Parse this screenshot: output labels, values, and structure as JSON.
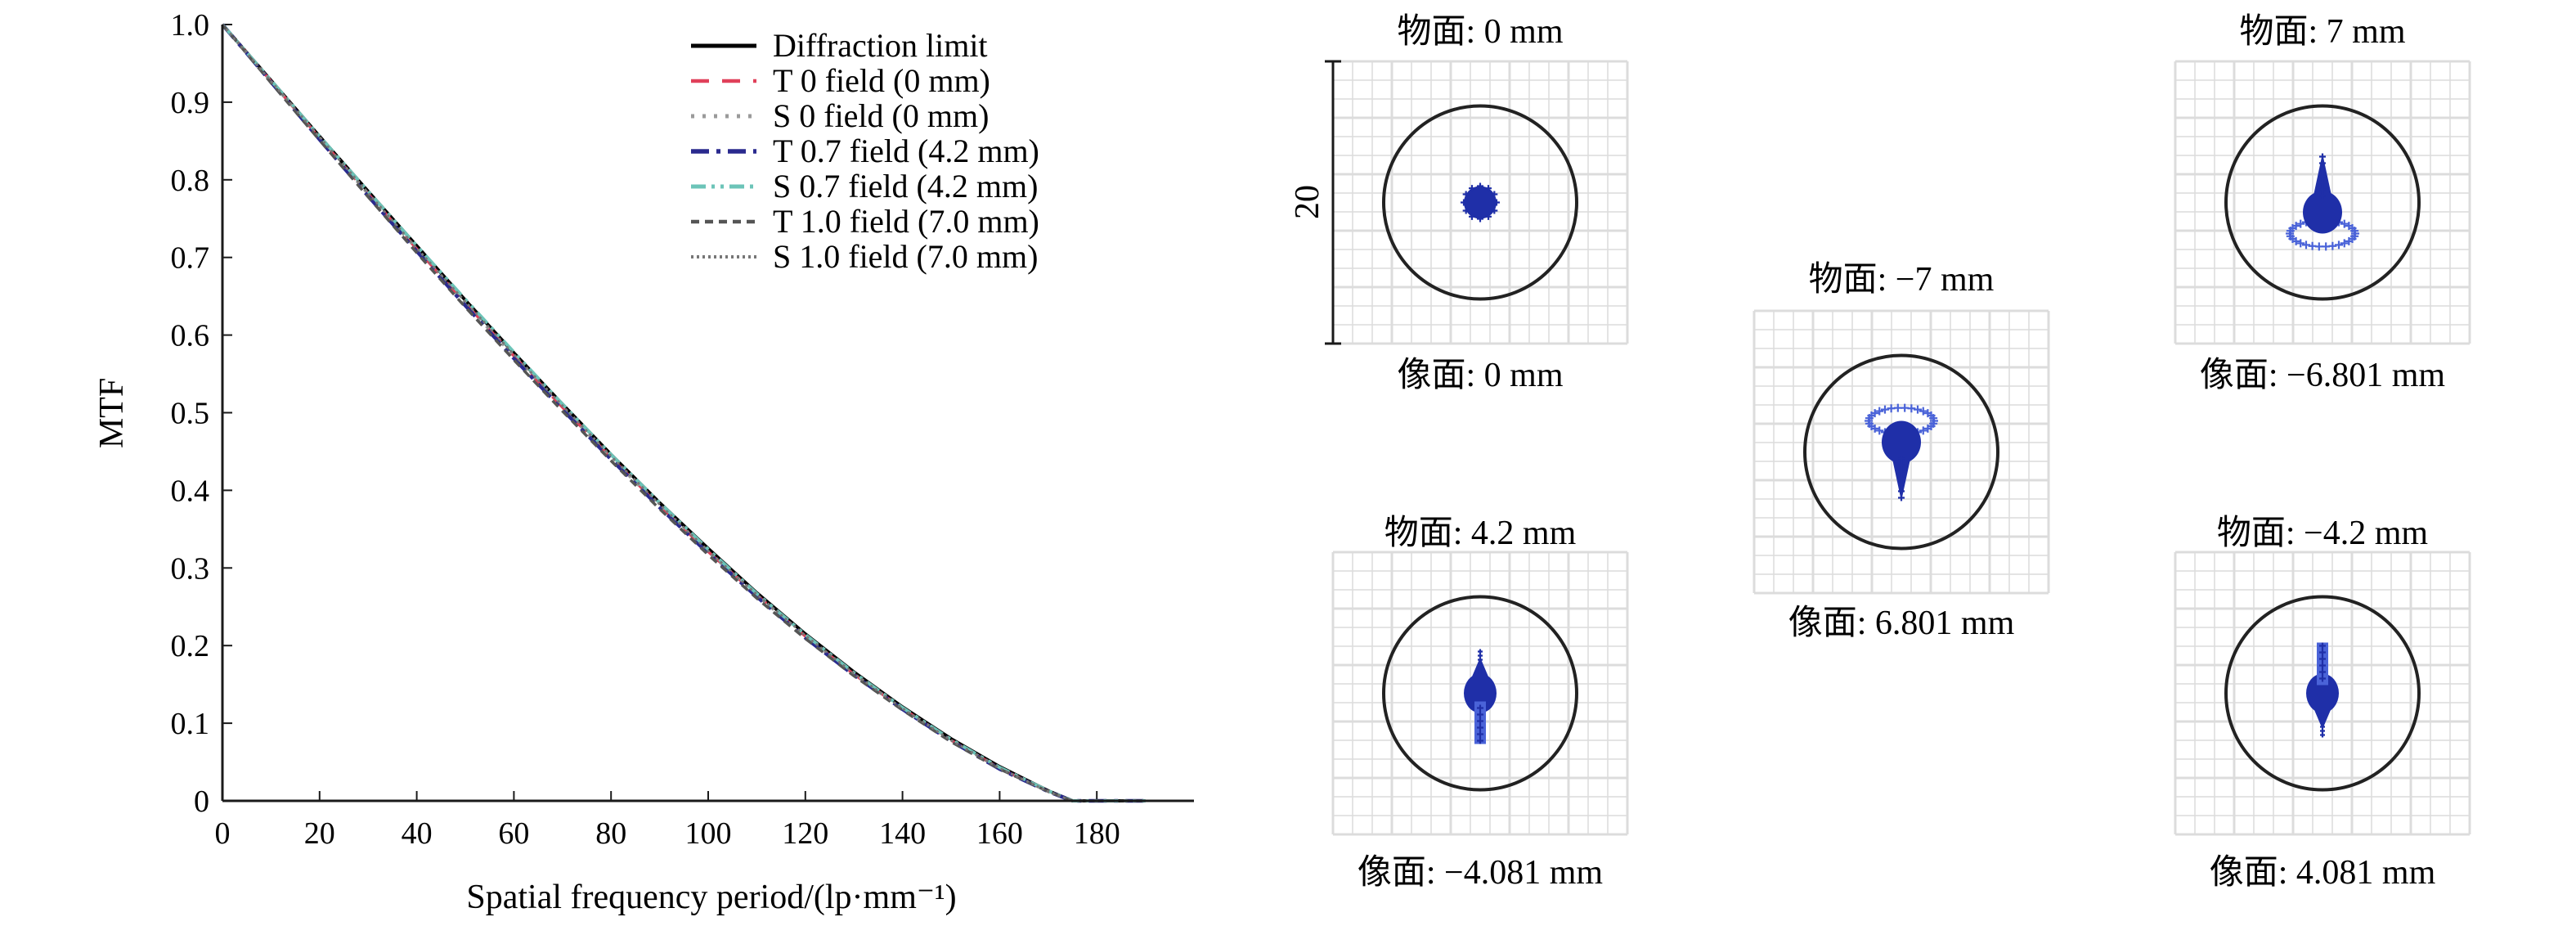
{
  "colors": {
    "axis": "#1a1a1a",
    "grid": "#dcdcdc",
    "spot": "#1f2fa8",
    "spot_light": "#4a63d8"
  },
  "chart_data": [
    {
      "type": "line",
      "xlabel": "Spatial frequency period/(lp·mm⁻¹)",
      "ylabel": "MTF",
      "xlim": [
        0,
        200
      ],
      "ylim": [
        0,
        1
      ],
      "xticks": [
        "0",
        "20",
        "40",
        "60",
        "80",
        "100",
        "120",
        "140",
        "160",
        "180"
      ],
      "yticks": [
        "0",
        "0.1",
        "0.2",
        "0.3",
        "0.4",
        "0.5",
        "0.6",
        "0.7",
        "0.8",
        "0.9",
        "1.0"
      ],
      "grid": false,
      "legend_position": "top-right",
      "x": [
        0,
        10,
        20,
        30,
        40,
        50,
        60,
        70,
        80,
        90,
        100,
        110,
        120,
        130,
        140,
        150,
        160,
        170,
        175,
        180,
        190
      ],
      "series": [
        {
          "name": "Diffraction limit",
          "color": "#000000",
          "dash": "solid",
          "values": [
            1.0,
            0.928,
            0.856,
            0.785,
            0.715,
            0.645,
            0.577,
            0.511,
            0.446,
            0.384,
            0.325,
            0.268,
            0.215,
            0.166,
            0.121,
            0.08,
            0.044,
            0.013,
            0.0,
            0.0,
            0.0
          ]
        },
        {
          "name": "T 0 field (0 mm)",
          "color": "#e0405a",
          "dash": "dashed",
          "values": [
            1.0,
            0.927,
            0.854,
            0.782,
            0.711,
            0.641,
            0.573,
            0.507,
            0.442,
            0.38,
            0.321,
            0.265,
            0.212,
            0.163,
            0.119,
            0.078,
            0.042,
            0.012,
            0.0,
            0.0,
            0.0
          ]
        },
        {
          "name": "S 0 field (0 mm)",
          "color": "#9a9a9a",
          "dash": "dotted",
          "values": [
            1.0,
            0.927,
            0.854,
            0.782,
            0.711,
            0.641,
            0.573,
            0.507,
            0.442,
            0.38,
            0.321,
            0.265,
            0.212,
            0.163,
            0.119,
            0.078,
            0.042,
            0.012,
            0.0,
            0.0,
            0.0
          ]
        },
        {
          "name": "T 0.7 field (4.2 mm)",
          "color": "#2a2a8e",
          "dash": "dashdot",
          "values": [
            1.0,
            0.926,
            0.852,
            0.779,
            0.708,
            0.638,
            0.57,
            0.504,
            0.44,
            0.378,
            0.319,
            0.263,
            0.21,
            0.162,
            0.118,
            0.077,
            0.041,
            0.012,
            0.0,
            0.0,
            0.0
          ]
        },
        {
          "name": "S 0.7 field (4.2 mm)",
          "color": "#6cc4b8",
          "dash": "dashdotdot",
          "values": [
            1.0,
            0.928,
            0.856,
            0.785,
            0.715,
            0.646,
            0.578,
            0.511,
            0.446,
            0.384,
            0.324,
            0.267,
            0.214,
            0.165,
            0.12,
            0.079,
            0.043,
            0.013,
            0.0,
            0.0,
            0.0
          ]
        },
        {
          "name": "T 1.0 field (7.0 mm)",
          "color": "#555555",
          "dash": "shortdash",
          "values": [
            1.0,
            0.925,
            0.851,
            0.778,
            0.706,
            0.636,
            0.568,
            0.502,
            0.438,
            0.376,
            0.317,
            0.261,
            0.209,
            0.161,
            0.117,
            0.076,
            0.041,
            0.012,
            0.0,
            0.0,
            0.0
          ]
        },
        {
          "name": "S 1.0 field (7.0 mm)",
          "color": "#777777",
          "dash": "finedot",
          "values": [
            1.0,
            0.927,
            0.855,
            0.783,
            0.712,
            0.643,
            0.575,
            0.509,
            0.444,
            0.382,
            0.322,
            0.266,
            0.213,
            0.164,
            0.119,
            0.078,
            0.042,
            0.012,
            0.0,
            0.0,
            0.0
          ]
        }
      ]
    },
    {
      "type": "spot_diagrams",
      "scale_bar_label": "20",
      "panels": [
        {
          "object_label": "物面: 0 mm",
          "image_label": "像面: 0 mm",
          "shape": "dot"
        },
        {
          "object_label": "物面: 4.2 mm",
          "image_label": "像面: −4.081 mm",
          "shape": "arrow-down"
        },
        {
          "object_label": "物面: −7 mm",
          "image_label": "像面: 6.801 mm",
          "shape": "ring-top"
        },
        {
          "object_label": "物面: 7 mm",
          "image_label": "像面: −6.801 mm",
          "shape": "ring-bottom"
        },
        {
          "object_label": "物面: −4.2 mm",
          "image_label": "像面: 4.081 mm",
          "shape": "arrow-up"
        }
      ]
    }
  ]
}
